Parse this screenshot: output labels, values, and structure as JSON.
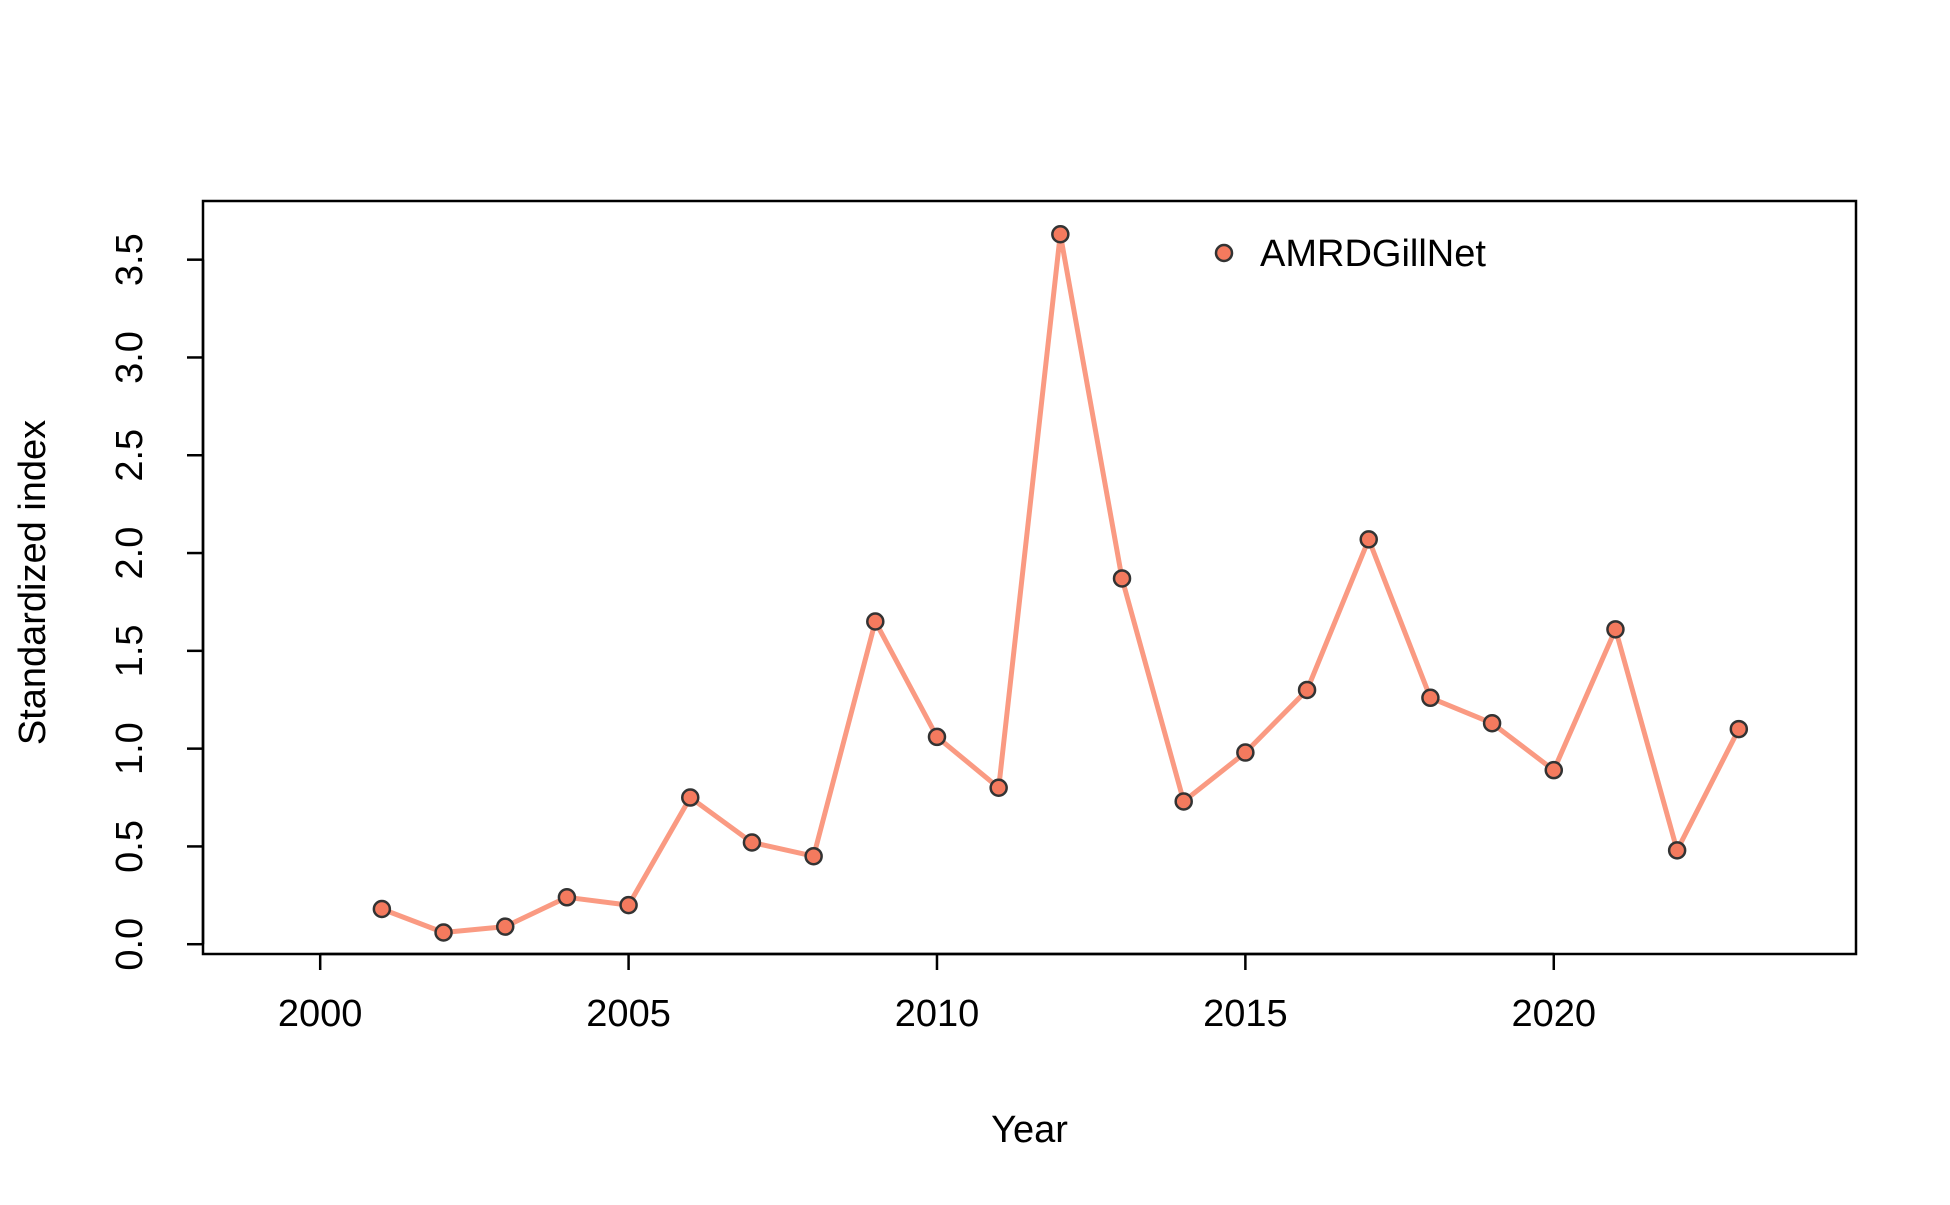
{
  "chart_data": {
    "type": "line",
    "title": "",
    "xlabel": "Year",
    "ylabel": "Standardized index",
    "xlim": [
      1998.1,
      2024.9
    ],
    "ylim": [
      -0.05,
      3.8
    ],
    "x_ticks": [
      2000,
      2005,
      2010,
      2015,
      2020
    ],
    "y_ticks": [
      0.0,
      0.5,
      1.0,
      1.5,
      2.0,
      2.5,
      3.0,
      3.5
    ],
    "y_tick_labels": [
      "0.0",
      "0.5",
      "1.0",
      "1.5",
      "2.0",
      "2.5",
      "3.0",
      "3.5"
    ],
    "grid": false,
    "legend_position": "top-center",
    "series": [
      {
        "name": "AMRDGillNet",
        "line_color": "#FA9A82",
        "marker_fill": "#F47A5E",
        "marker_edge": "#333333",
        "x": [
          2001,
          2002,
          2003,
          2004,
          2005,
          2006,
          2007,
          2008,
          2009,
          2010,
          2011,
          2012,
          2013,
          2014,
          2015,
          2016,
          2017,
          2018,
          2019,
          2020,
          2021,
          2022,
          2023
        ],
        "y": [
          0.18,
          0.06,
          0.09,
          0.24,
          0.2,
          0.75,
          0.52,
          0.45,
          1.65,
          1.06,
          0.8,
          3.63,
          1.87,
          0.73,
          0.98,
          1.3,
          2.07,
          1.26,
          1.13,
          0.89,
          1.61,
          0.48,
          1.1
        ]
      }
    ]
  }
}
